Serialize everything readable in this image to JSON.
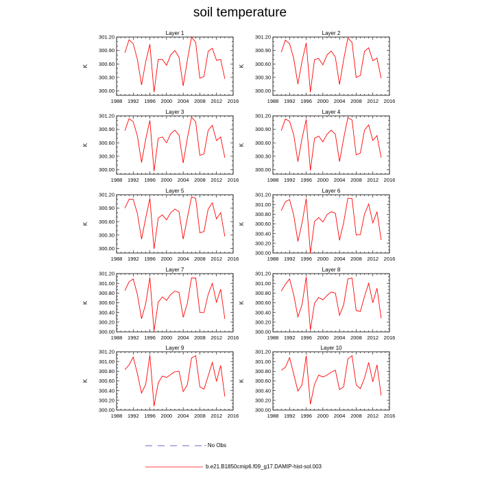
{
  "title": "soil temperature",
  "chart_data": {
    "type": "line",
    "layout": {
      "rows": 5,
      "cols": 2
    },
    "ylabel": "K",
    "xlim": [
      1988,
      2016
    ],
    "x_ticks": [
      1988,
      1992,
      1996,
      2000,
      2004,
      2008,
      2012,
      2016
    ],
    "x_tick_labels": [
      "1988",
      "1992",
      "1996",
      "2000",
      "2004",
      "2008",
      "2012",
      "2016"
    ],
    "x": [
      1990,
      1991,
      1992,
      1993,
      1994,
      1995,
      1996,
      1997,
      1998,
      1999,
      2000,
      2001,
      2002,
      2003,
      2004,
      2005,
      2006,
      2007,
      2008,
      2009,
      2010,
      2011,
      2012,
      2013,
      2014
    ],
    "series_color": "#ff0000",
    "panels": [
      {
        "title": "Layer 1",
        "ylim": [
          299.9,
          301.2
        ],
        "y_ticks": [
          300.0,
          300.3,
          300.6,
          300.9,
          301.2
        ],
        "y_tick_labels": [
          "300.00",
          "300.30",
          "300.60",
          "300.90",
          "301.20"
        ],
        "values": [
          300.85,
          301.14,
          301.05,
          300.7,
          300.13,
          300.65,
          301.04,
          299.97,
          300.7,
          300.7,
          300.57,
          300.8,
          300.9,
          300.75,
          300.11,
          300.68,
          301.2,
          301.08,
          300.28,
          300.32,
          300.88,
          300.95,
          300.68,
          300.7,
          300.27
        ]
      },
      {
        "title": "Layer 2",
        "ylim": [
          299.9,
          301.2
        ],
        "y_ticks": [
          300.0,
          300.3,
          300.6,
          300.9,
          301.2
        ],
        "y_tick_labels": [
          "300.00",
          "300.30",
          "300.60",
          "300.90",
          "301.20"
        ],
        "values": [
          300.86,
          301.13,
          301.05,
          300.72,
          300.15,
          300.66,
          301.07,
          299.97,
          300.7,
          300.72,
          300.58,
          300.8,
          300.89,
          300.75,
          300.14,
          300.7,
          301.18,
          301.08,
          300.3,
          300.34,
          300.88,
          300.96,
          300.67,
          300.73,
          300.28
        ]
      },
      {
        "title": "Layer 3",
        "ylim": [
          299.9,
          301.2
        ],
        "y_ticks": [
          300.0,
          300.3,
          300.6,
          300.9,
          301.2
        ],
        "y_tick_labels": [
          "300.00",
          "300.30",
          "300.60",
          "300.90",
          "301.20"
        ],
        "values": [
          300.87,
          301.14,
          301.07,
          300.75,
          300.16,
          300.68,
          301.1,
          299.97,
          300.7,
          300.73,
          300.6,
          300.8,
          300.88,
          300.77,
          300.15,
          300.7,
          301.17,
          301.07,
          300.32,
          300.35,
          300.88,
          300.99,
          300.65,
          300.73,
          300.27
        ]
      },
      {
        "title": "Layer 4",
        "ylim": [
          299.9,
          301.2
        ],
        "y_ticks": [
          300.0,
          300.3,
          300.6,
          300.9,
          301.2
        ],
        "y_tick_labels": [
          "300.00",
          "300.30",
          "300.60",
          "300.90",
          "301.20"
        ],
        "values": [
          300.87,
          301.13,
          301.08,
          300.78,
          300.18,
          300.7,
          301.12,
          299.98,
          300.7,
          300.75,
          300.62,
          300.79,
          300.88,
          300.79,
          300.18,
          300.7,
          301.16,
          301.11,
          300.33,
          300.37,
          300.88,
          301.0,
          300.65,
          300.76,
          300.27
        ]
      },
      {
        "title": "Layer 5",
        "ylim": [
          299.9,
          301.2
        ],
        "y_ticks": [
          300.0,
          300.3,
          300.6,
          300.9,
          301.2
        ],
        "y_tick_labels": [
          "300.00",
          "300.30",
          "300.60",
          "300.90",
          "301.20"
        ],
        "values": [
          300.9,
          301.1,
          301.1,
          300.78,
          300.21,
          300.68,
          301.12,
          299.99,
          300.68,
          300.75,
          300.64,
          300.8,
          300.88,
          300.82,
          300.21,
          300.68,
          301.15,
          301.12,
          300.35,
          300.38,
          300.88,
          301.02,
          300.66,
          300.8,
          300.27
        ]
      },
      {
        "title": "Layer 6",
        "ylim": [
          300.0,
          301.2
        ],
        "y_ticks": [
          300.0,
          300.2,
          300.4,
          300.6,
          300.8,
          301.0,
          301.2
        ],
        "y_tick_labels": [
          "300.00",
          "300.20",
          "300.40",
          "300.60",
          "300.80",
          "301.00",
          "301.20"
        ],
        "values": [
          300.87,
          301.06,
          301.1,
          300.78,
          300.24,
          300.62,
          301.12,
          300.0,
          300.65,
          300.73,
          300.64,
          300.79,
          300.85,
          300.82,
          300.26,
          300.63,
          301.13,
          301.12,
          300.37,
          300.38,
          300.8,
          301.01,
          300.62,
          300.85,
          300.27
        ]
      },
      {
        "title": "Layer 7",
        "ylim": [
          300.0,
          301.2
        ],
        "y_ticks": [
          300.0,
          300.2,
          300.4,
          300.6,
          300.8,
          301.0,
          301.2
        ],
        "y_tick_labels": [
          "300.00",
          "300.20",
          "300.40",
          "300.60",
          "300.80",
          "301.00",
          "301.20"
        ],
        "values": [
          300.85,
          301.03,
          301.09,
          300.77,
          300.27,
          300.58,
          301.12,
          300.02,
          300.61,
          300.72,
          300.65,
          300.77,
          300.84,
          300.81,
          300.3,
          300.59,
          301.11,
          301.11,
          300.4,
          300.4,
          300.77,
          301.0,
          300.61,
          300.88,
          300.27
        ]
      },
      {
        "title": "Layer 8",
        "ylim": [
          300.0,
          301.2
        ],
        "y_ticks": [
          300.0,
          300.2,
          300.4,
          300.6,
          300.8,
          301.0,
          301.2
        ],
        "y_tick_labels": [
          "300.00",
          "300.20",
          "300.40",
          "300.60",
          "300.80",
          "301.00",
          "301.20"
        ],
        "values": [
          300.84,
          300.98,
          301.09,
          300.76,
          300.31,
          300.56,
          301.13,
          300.04,
          300.59,
          300.71,
          300.66,
          300.75,
          300.82,
          300.8,
          300.34,
          300.56,
          301.09,
          301.11,
          300.44,
          300.42,
          300.73,
          301.0,
          300.6,
          300.9,
          300.28
        ]
      },
      {
        "title": "Layer 9",
        "ylim": [
          300.0,
          301.2
        ],
        "y_ticks": [
          300.0,
          300.2,
          300.4,
          300.6,
          300.8,
          301.0,
          301.2
        ],
        "y_tick_labels": [
          "300.00",
          "300.20",
          "300.40",
          "300.60",
          "300.80",
          "301.00",
          "301.20"
        ],
        "values": [
          300.83,
          300.93,
          301.09,
          300.75,
          300.35,
          300.53,
          301.13,
          300.08,
          300.56,
          300.7,
          300.67,
          300.73,
          300.79,
          300.8,
          300.38,
          300.52,
          301.07,
          301.12,
          300.48,
          300.43,
          300.7,
          300.98,
          300.59,
          300.92,
          300.28
        ]
      },
      {
        "title": "Layer 10",
        "ylim": [
          300.0,
          301.2
        ],
        "y_ticks": [
          300.0,
          300.2,
          300.4,
          300.6,
          300.8,
          301.0,
          301.2
        ],
        "y_tick_labels": [
          "300.00",
          "300.20",
          "300.40",
          "300.60",
          "300.80",
          "301.00",
          "301.20"
        ],
        "values": [
          300.82,
          300.88,
          301.08,
          300.74,
          300.39,
          300.52,
          301.12,
          300.12,
          300.53,
          300.72,
          300.68,
          300.72,
          300.78,
          300.82,
          300.42,
          300.48,
          301.05,
          301.12,
          300.52,
          300.44,
          300.66,
          300.98,
          300.58,
          300.93,
          300.3
        ]
      }
    ],
    "legend": [
      {
        "label": "- No Obs",
        "style": "dashed",
        "color": "#3333aa"
      },
      {
        "label": "b.e21.B1850cmip6.f09_g17.DAMIP-hist-sol.003",
        "style": "solid",
        "color": "#ff0000"
      }
    ]
  }
}
